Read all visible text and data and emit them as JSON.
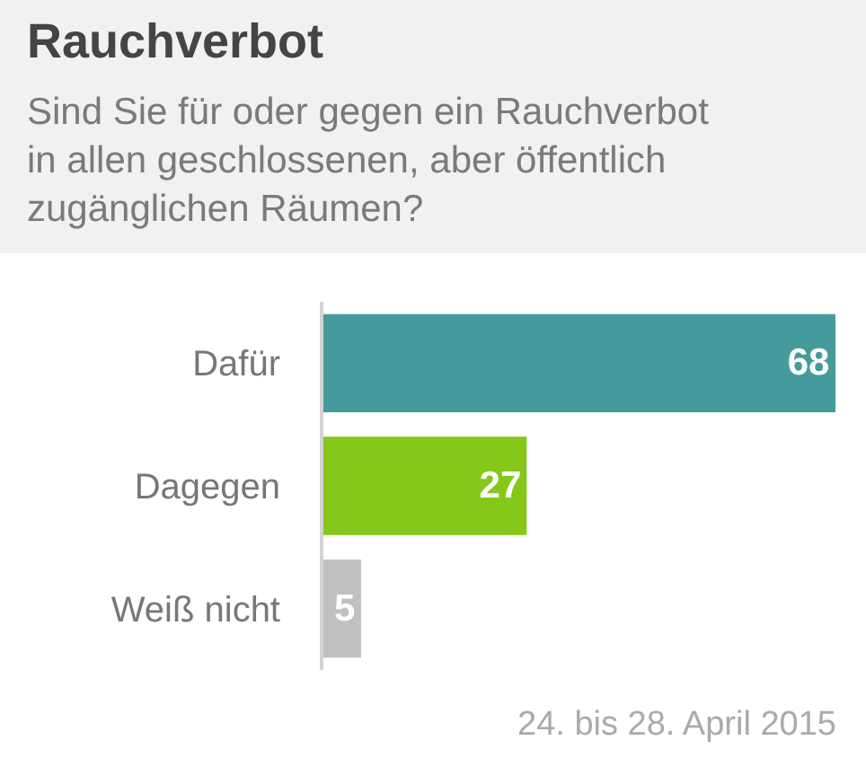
{
  "chart_data": {
    "type": "bar",
    "orientation": "horizontal",
    "title": "Rauchverbot",
    "subtitle": "Sind Sie für oder gegen ein Rauchverbot in allen geschlossenen, aber öffentlich zugänglichen Räumen?",
    "categories": [
      "Dafür",
      "Dagegen",
      "Weiß nicht"
    ],
    "values": [
      68,
      27,
      5
    ],
    "colors": [
      "#459b9c",
      "#85c81a",
      "#c0c0c0"
    ],
    "data_labels": true,
    "annotations": [
      "24. bis 28. April 2015"
    ]
  }
}
